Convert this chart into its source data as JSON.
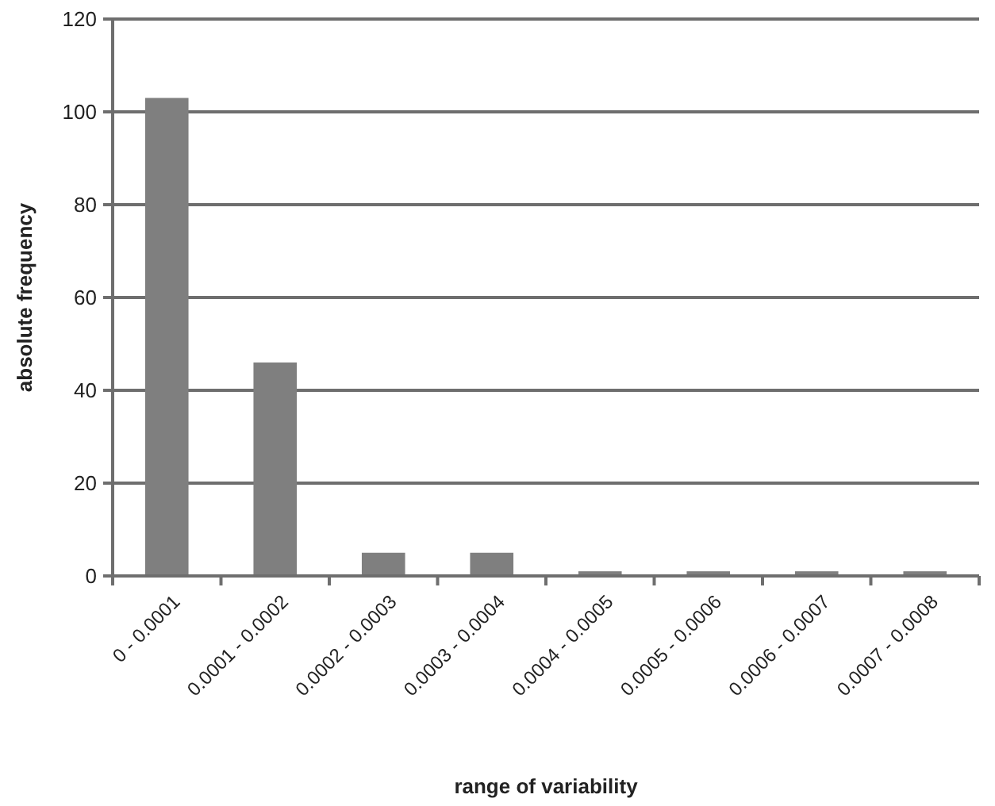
{
  "chart_data": {
    "type": "bar",
    "xlabel": "range of variability",
    "ylabel": "absolute frequency",
    "categories": [
      "0 - 0.0001",
      "0.0001 - 0.0002",
      "0.0002 - 0.0003",
      "0.0003 - 0.0004",
      "0.0004 - 0.0005",
      "0.0005 - 0.0006",
      "0.0006 - 0.0007",
      "0.0007 - 0.0008"
    ],
    "values": [
      103,
      46,
      5,
      5,
      1,
      1,
      1,
      1
    ],
    "color": "#7f7f7f",
    "ylim": [
      0,
      120
    ],
    "yticks": [
      0,
      20,
      40,
      60,
      80,
      100,
      120
    ],
    "grid": "y"
  }
}
